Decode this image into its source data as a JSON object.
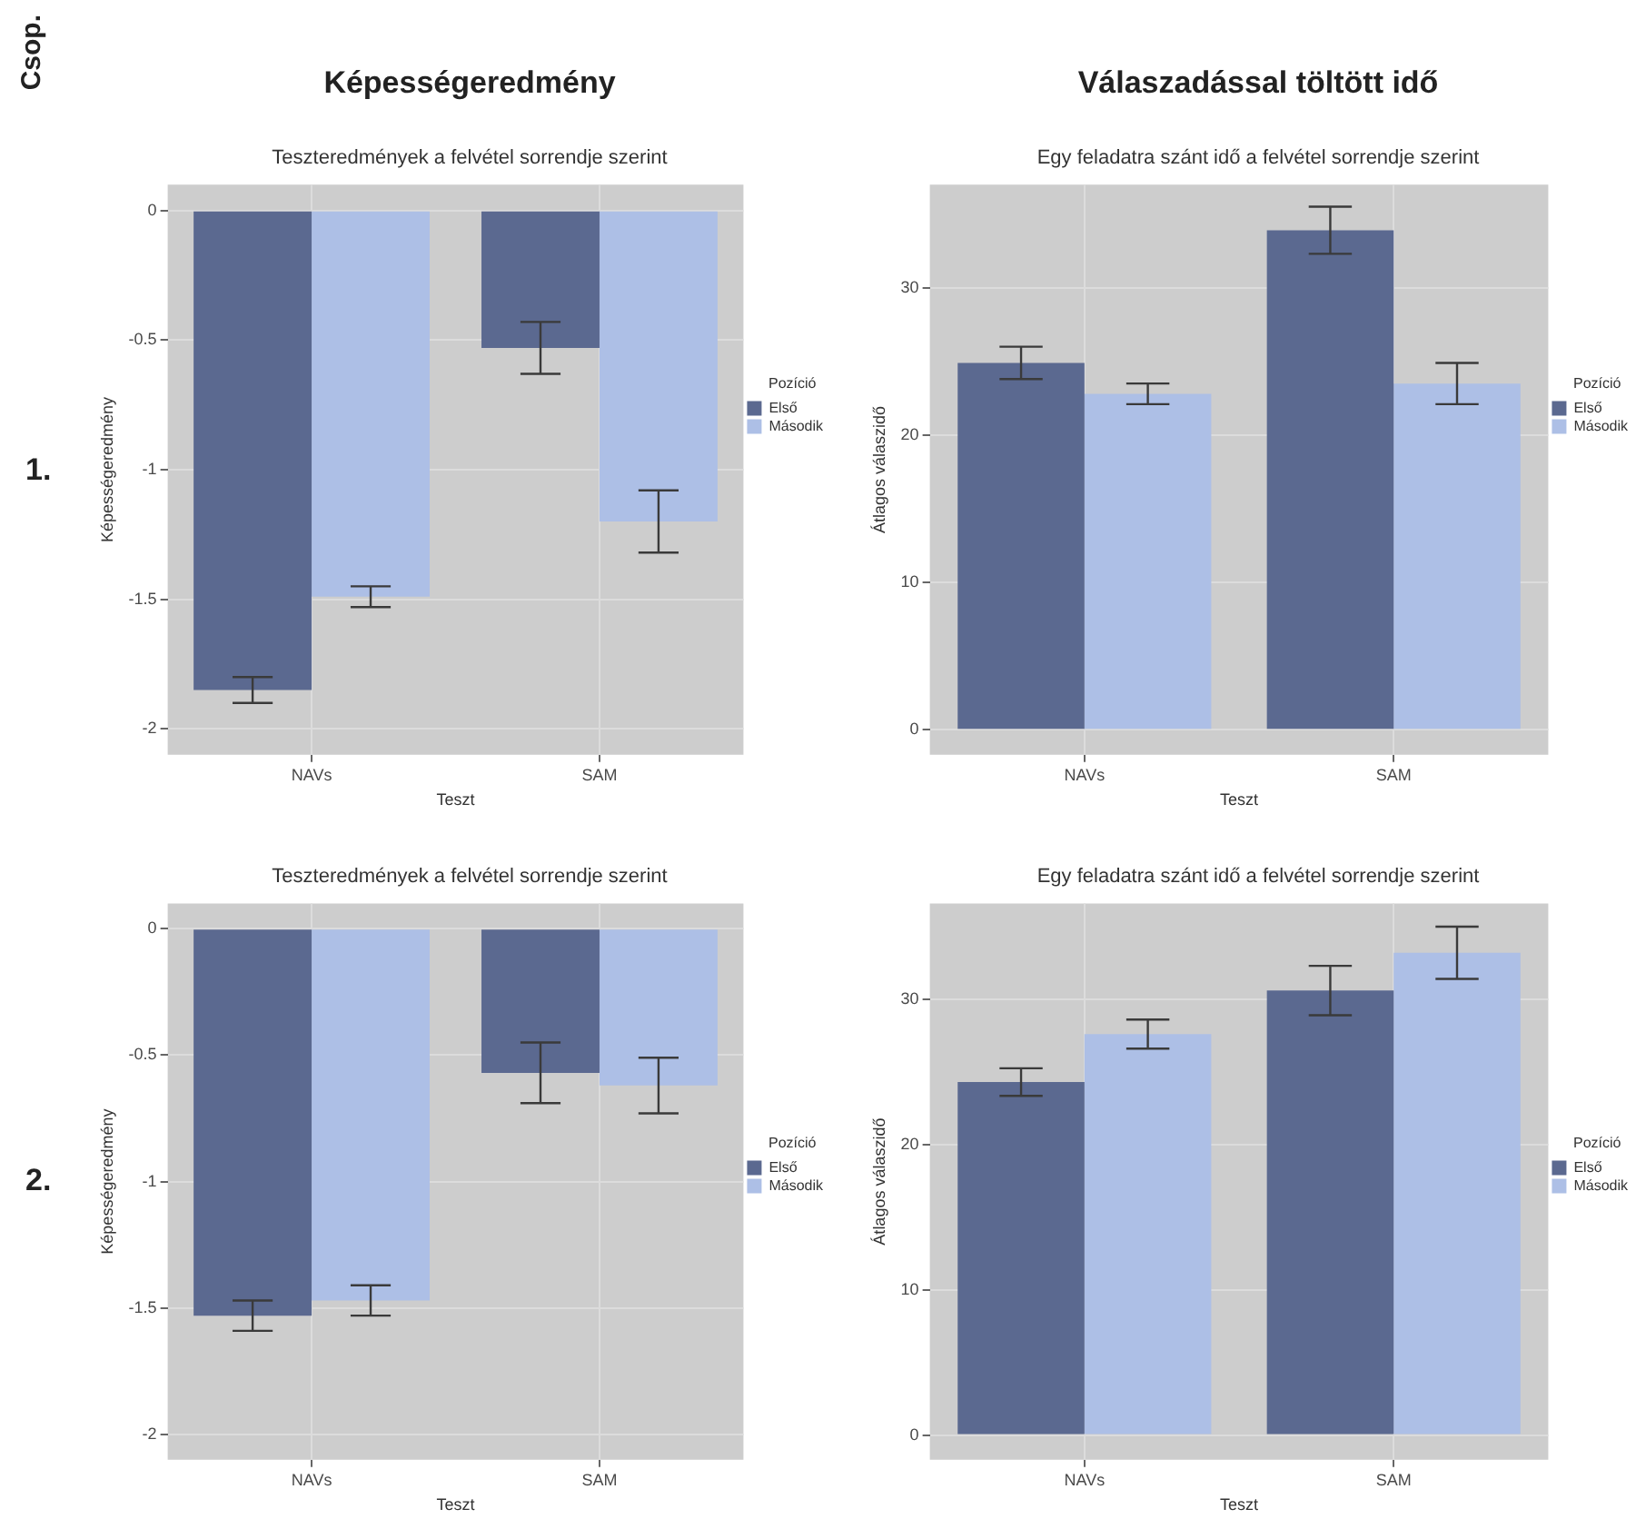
{
  "chart_data": [
    {
      "type": "bar",
      "title": "Képességeredmény",
      "subtitle": "Teszteredmények a felvétel sorrendje szerint",
      "xlabel": "Teszt",
      "ylabel": "Képességeredmény",
      "legend_title": "Pozíció",
      "categories": [
        "NAVs",
        "SAM"
      ],
      "series": [
        {
          "name": "Első",
          "color": "#5b6990",
          "values": [
            -1.85,
            -0.53
          ],
          "errors": [
            0.05,
            0.1
          ]
        },
        {
          "name": "Második",
          "color": "#adbfe6",
          "values": [
            -1.49,
            -1.2
          ],
          "errors": [
            0.04,
            0.12
          ]
        }
      ],
      "ylim": [
        -2.1,
        0.1
      ],
      "yticks": [
        -2,
        -1.5,
        -1,
        -0.5,
        0
      ],
      "grid": true,
      "legend": "right",
      "annotations": [
        "Csop.",
        "1."
      ]
    },
    {
      "type": "bar",
      "title": "Válaszadással töltött idő",
      "subtitle": "Egy feladatra szánt idő a felvétel sorrendje szerint",
      "xlabel": "Teszt",
      "ylabel": "Átlagos válaszidő",
      "legend_title": "Pozíció",
      "categories": [
        "NAVs",
        "SAM"
      ],
      "series": [
        {
          "name": "Első",
          "color": "#5b6990",
          "values": [
            24.9,
            33.9
          ],
          "errors": [
            1.1,
            1.6
          ]
        },
        {
          "name": "Második",
          "color": "#adbfe6",
          "values": [
            22.8,
            23.5
          ],
          "errors": [
            0.7,
            1.4
          ]
        }
      ],
      "ylim": [
        -1.7,
        37
      ],
      "yticks": [
        0,
        10,
        20,
        30
      ],
      "grid": true,
      "legend": "right"
    },
    {
      "type": "bar",
      "title": "Teszteredmények a felvétel sorrendje szerint",
      "xlabel": "Teszt",
      "ylabel": "Képességeredmény",
      "legend_title": "Pozíció",
      "categories": [
        "NAVs",
        "SAM"
      ],
      "series": [
        {
          "name": "Első",
          "color": "#5b6990",
          "values": [
            -1.53,
            -0.57
          ],
          "errors": [
            0.06,
            0.12
          ]
        },
        {
          "name": "Második",
          "color": "#adbfe6",
          "values": [
            -1.47,
            -0.62
          ],
          "errors": [
            0.06,
            0.11
          ]
        }
      ],
      "ylim": [
        -2.1,
        0.1
      ],
      "yticks": [
        -2,
        -1.5,
        -1,
        -0.5,
        0
      ],
      "grid": true,
      "legend": "right",
      "annotations": [
        "2."
      ]
    },
    {
      "type": "bar",
      "title": "Egy feladatra szánt idő a felvétel sorrendje szerint",
      "xlabel": "Teszt",
      "ylabel": "Átlagos válaszidő",
      "legend_title": "Pozíció",
      "categories": [
        "NAVs",
        "SAM"
      ],
      "series": [
        {
          "name": "Első",
          "color": "#5b6990",
          "values": [
            24.3,
            30.6
          ],
          "errors": [
            0.95,
            1.7
          ]
        },
        {
          "name": "Második",
          "color": "#adbfe6",
          "values": [
            27.6,
            33.2
          ],
          "errors": [
            1.0,
            1.8
          ]
        }
      ],
      "ylim": [
        -1.7,
        36.6
      ],
      "yticks": [
        0,
        10,
        20,
        30
      ],
      "grid": true,
      "legend": "right"
    }
  ]
}
